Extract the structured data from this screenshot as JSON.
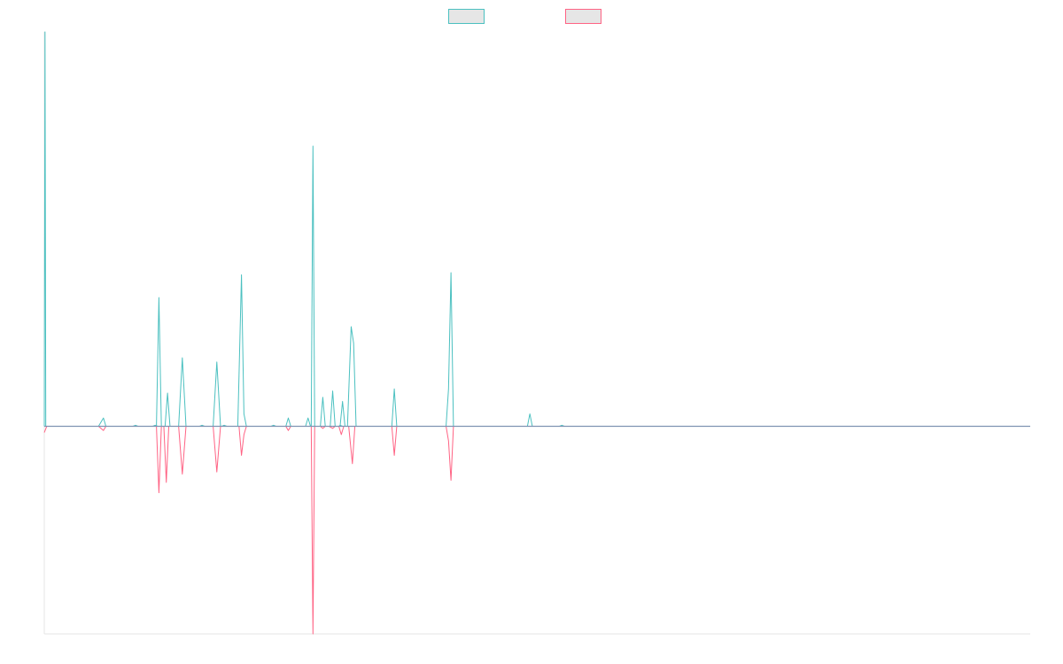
{
  "chart_data": {
    "type": "line",
    "title": "",
    "xlabel": "",
    "ylabel": "",
    "legend_placement": "top-center",
    "grid": false,
    "x_count": 400,
    "xlim": [
      0,
      400
    ],
    "ylim": [
      -100,
      190
    ],
    "zero_line_color": "#7f93b2",
    "axis_color": "#e6e6e6",
    "series": [
      {
        "color": "#4bc0c0",
        "fill": "#e6e6e6",
        "points": [
          [
            0,
            0
          ],
          [
            0.3,
            190
          ],
          [
            0.6,
            0
          ],
          [
            1,
            0
          ],
          [
            22,
            0
          ],
          [
            24,
            4
          ],
          [
            25,
            0
          ],
          [
            36,
            0
          ],
          [
            37,
            0.5
          ],
          [
            38,
            0
          ],
          [
            44,
            0
          ],
          [
            45,
            0.5
          ],
          [
            46,
            0
          ],
          [
            45.5,
            0
          ],
          [
            46.5,
            62
          ],
          [
            47.5,
            0
          ],
          [
            49,
            0
          ],
          [
            50,
            16
          ],
          [
            51,
            0
          ],
          [
            54.5,
            0
          ],
          [
            56,
            33
          ],
          [
            57.5,
            0
          ],
          [
            63,
            0
          ],
          [
            64,
            0.5
          ],
          [
            65,
            0
          ],
          [
            68.5,
            0
          ],
          [
            70,
            31
          ],
          [
            71.5,
            0
          ],
          [
            72,
            0
          ],
          [
            73,
            0.5
          ],
          [
            74,
            0
          ],
          [
            78.5,
            0
          ],
          [
            80,
            73
          ],
          [
            81,
            6
          ],
          [
            82,
            0
          ],
          [
            92,
            0
          ],
          [
            93,
            0.5
          ],
          [
            94,
            0
          ],
          [
            98,
            0
          ],
          [
            99,
            4
          ],
          [
            100,
            0
          ],
          [
            106,
            0
          ],
          [
            107,
            4
          ],
          [
            108,
            0
          ],
          [
            108.3,
            0
          ],
          [
            109,
            135
          ],
          [
            109.7,
            0
          ],
          [
            112,
            0
          ],
          [
            113,
            14
          ],
          [
            114,
            0
          ],
          [
            116,
            0
          ],
          [
            117,
            17
          ],
          [
            118,
            0
          ],
          [
            119.5,
            0
          ],
          [
            120,
            0.5
          ],
          [
            121,
            0
          ],
          [
            120,
            0
          ],
          [
            121,
            12
          ],
          [
            122,
            0
          ],
          [
            123,
            0
          ],
          [
            124.5,
            48
          ],
          [
            125.5,
            40
          ],
          [
            126.5,
            0
          ],
          [
            141,
            0
          ],
          [
            142,
            18
          ],
          [
            143,
            0
          ],
          [
            163,
            0
          ],
          [
            164,
            18
          ],
          [
            165,
            74
          ],
          [
            166,
            0
          ],
          [
            196,
            0
          ],
          [
            197,
            6
          ],
          [
            198,
            0
          ],
          [
            209,
            0
          ],
          [
            210,
            0.5
          ],
          [
            211,
            0
          ],
          [
            211,
            0
          ],
          [
            400,
            0
          ]
        ]
      },
      {
        "color": "#ff6384",
        "fill": "#e6e6e6",
        "points": [
          [
            0,
            -3
          ],
          [
            1,
            0
          ],
          [
            22,
            0
          ],
          [
            24,
            -2
          ],
          [
            25,
            0
          ],
          [
            45.5,
            0
          ],
          [
            46.5,
            -32
          ],
          [
            47.5,
            0
          ],
          [
            48.5,
            0
          ],
          [
            49.5,
            -27
          ],
          [
            50.5,
            0
          ],
          [
            54.5,
            0
          ],
          [
            56,
            -23
          ],
          [
            57.5,
            0
          ],
          [
            68.5,
            0
          ],
          [
            70,
            -22
          ],
          [
            71.5,
            0
          ],
          [
            79,
            0
          ],
          [
            80,
            -14
          ],
          [
            81,
            -4
          ],
          [
            82,
            0
          ],
          [
            98,
            0
          ],
          [
            99,
            -2
          ],
          [
            100,
            0
          ],
          [
            108.3,
            0
          ],
          [
            109,
            -100
          ],
          [
            109.7,
            0
          ],
          [
            112,
            0
          ],
          [
            113,
            -1
          ],
          [
            114,
            0
          ],
          [
            115.5,
            0
          ],
          [
            117,
            -1
          ],
          [
            118,
            0
          ],
          [
            119.5,
            0
          ],
          [
            120.5,
            -4
          ],
          [
            121.5,
            0
          ],
          [
            123.5,
            0
          ],
          [
            125,
            -18
          ],
          [
            126,
            0
          ],
          [
            141,
            0
          ],
          [
            142,
            -14
          ],
          [
            143,
            0
          ],
          [
            163,
            0
          ],
          [
            164,
            -7
          ],
          [
            165,
            -26
          ],
          [
            166,
            0
          ],
          [
            166,
            0
          ],
          [
            400,
            0
          ]
        ]
      }
    ]
  }
}
